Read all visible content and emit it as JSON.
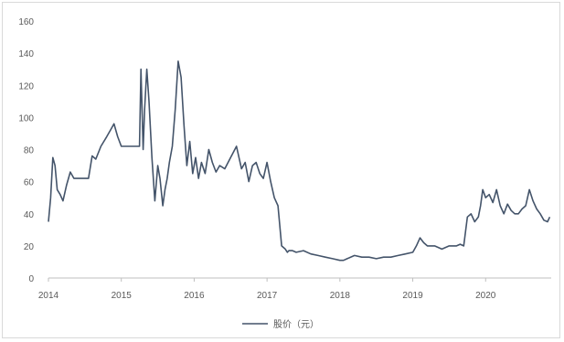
{
  "chart_data": {
    "type": "line",
    "title": "",
    "xlabel": "",
    "ylabel": "",
    "ylim": [
      0,
      160
    ],
    "y_ticks": [
      "0",
      "20",
      "40",
      "60",
      "80",
      "100",
      "120",
      "140",
      "160"
    ],
    "xlim": [
      2014.0,
      2020.9
    ],
    "x_ticks": [
      "2014",
      "2015",
      "2016",
      "2017",
      "2018",
      "2019",
      "2020"
    ],
    "grid": false,
    "legend_position": "bottom-center",
    "series": [
      {
        "name": "股价（元）",
        "color": "#44546a",
        "x": [
          2014.0,
          2014.03,
          2014.06,
          2014.09,
          2014.12,
          2014.16,
          2014.2,
          2014.25,
          2014.3,
          2014.35,
          2014.45,
          2014.55,
          2014.6,
          2014.65,
          2014.72,
          2014.8,
          2014.85,
          2014.9,
          2014.95,
          2015.0,
          2015.1,
          2015.2,
          2015.25,
          2015.27,
          2015.3,
          2015.32,
          2015.35,
          2015.38,
          2015.42,
          2015.46,
          2015.5,
          2015.53,
          2015.57,
          2015.6,
          2015.63,
          2015.66,
          2015.7,
          2015.74,
          2015.78,
          2015.82,
          2015.86,
          2015.9,
          2015.94,
          2015.98,
          2016.02,
          2016.06,
          2016.1,
          2016.15,
          2016.2,
          2016.25,
          2016.3,
          2016.35,
          2016.42,
          2016.5,
          2016.58,
          2016.65,
          2016.7,
          2016.75,
          2016.8,
          2016.85,
          2016.9,
          2016.95,
          2017.0,
          2017.05,
          2017.1,
          2017.15,
          2017.2,
          2017.25,
          2017.28,
          2017.3,
          2017.35,
          2017.4,
          2017.5,
          2017.6,
          2017.7,
          2017.8,
          2017.9,
          2018.0,
          2018.05,
          2018.1,
          2018.2,
          2018.3,
          2018.4,
          2018.5,
          2018.6,
          2018.7,
          2018.8,
          2018.9,
          2019.0,
          2019.05,
          2019.1,
          2019.15,
          2019.2,
          2019.3,
          2019.4,
          2019.5,
          2019.6,
          2019.65,
          2019.7,
          2019.75,
          2019.8,
          2019.85,
          2019.9,
          2019.93,
          2019.96,
          2020.0,
          2020.05,
          2020.1,
          2020.15,
          2020.2,
          2020.25,
          2020.3,
          2020.35,
          2020.4,
          2020.45,
          2020.5,
          2020.55,
          2020.6,
          2020.65,
          2020.7,
          2020.75,
          2020.8,
          2020.85,
          2020.88
        ],
        "y": [
          35,
          50,
          75,
          70,
          55,
          52,
          48,
          58,
          66,
          62,
          62,
          62,
          76,
          74,
          82,
          88,
          92,
          96,
          88,
          82,
          82,
          82,
          82,
          130,
          80,
          105,
          130,
          110,
          75,
          48,
          70,
          62,
          45,
          55,
          62,
          72,
          82,
          105,
          135,
          125,
          95,
          70,
          85,
          65,
          75,
          62,
          72,
          65,
          80,
          72,
          66,
          70,
          68,
          75,
          82,
          68,
          72,
          60,
          70,
          72,
          65,
          62,
          72,
          60,
          50,
          45,
          20,
          18,
          16,
          17,
          17,
          16,
          17,
          15,
          14,
          13,
          12,
          11,
          11,
          12,
          14,
          13,
          13,
          12,
          13,
          13,
          14,
          15,
          16,
          20,
          25,
          22,
          20,
          20,
          18,
          20,
          20,
          21,
          20,
          38,
          40,
          35,
          38,
          45,
          55,
          50,
          52,
          47,
          55,
          45,
          40,
          46,
          42,
          40,
          40,
          43,
          45,
          55,
          48,
          43,
          40,
          36,
          35,
          38
        ]
      }
    ]
  }
}
